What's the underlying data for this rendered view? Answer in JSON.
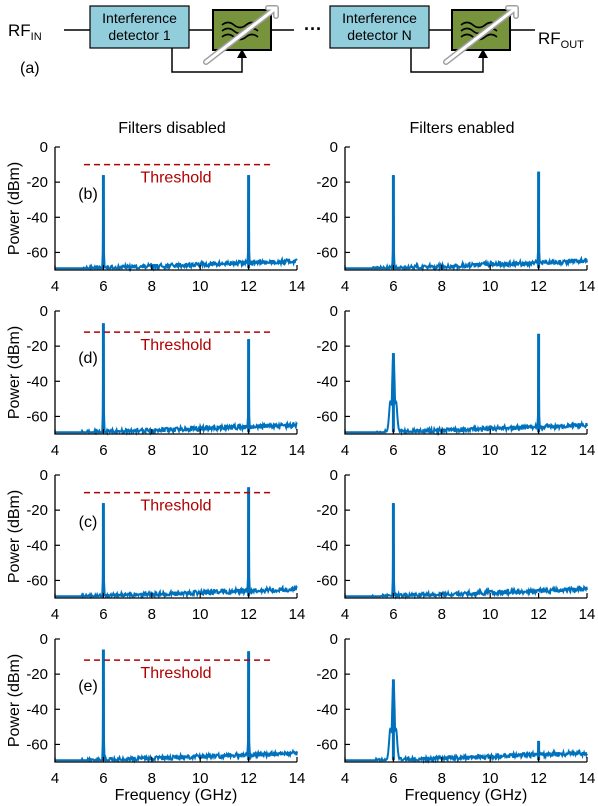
{
  "diagram": {
    "panel_label": "(a)",
    "input": {
      "main": "RF",
      "sub": "IN"
    },
    "output": {
      "main": "RF",
      "sub": "OUT"
    },
    "detector_1": [
      "Interference",
      "detector 1"
    ],
    "detector_n": [
      "Interference",
      "detector N"
    ],
    "ellipsis": "···",
    "filter_icon": "tunable-filter-icon",
    "colors": {
      "detector_fill": "#92cddc",
      "filter_fill": "#77933c"
    }
  },
  "columns": {
    "left": "Filters disabled",
    "right": "Filters enabled"
  },
  "colors": {
    "trace": "#0072bd",
    "threshold": "#b00000"
  },
  "chart_data": [
    {
      "type": "line",
      "label": "(b)",
      "column": "Filters disabled",
      "xlabel": "",
      "ylabel": "Power (dBm)",
      "xlim": [
        4,
        14
      ],
      "ylim": [
        -70,
        0
      ],
      "xticks": [
        4,
        6,
        8,
        10,
        12,
        14
      ],
      "yticks": [
        0,
        -20,
        -40,
        -60
      ],
      "noise_floor": -69,
      "threshold": -10,
      "threshold_label": "Threshold",
      "peaks": [
        {
          "x": 6,
          "y": -16
        },
        {
          "x": 12,
          "y": -16
        }
      ]
    },
    {
      "type": "line",
      "label": "",
      "column": "Filters enabled",
      "xlabel": "",
      "ylabel": "",
      "xlim": [
        4,
        14
      ],
      "ylim": [
        -70,
        0
      ],
      "xticks": [
        4,
        6,
        8,
        10,
        12,
        14
      ],
      "yticks": [
        0,
        -20,
        -40,
        -60
      ],
      "noise_floor": -69,
      "threshold": null,
      "threshold_label": "",
      "peaks": [
        {
          "x": 6,
          "y": -16
        },
        {
          "x": 12,
          "y": -14
        }
      ]
    },
    {
      "type": "line",
      "label": "(d)",
      "column": "Filters disabled",
      "xlabel": "",
      "ylabel": "Power (dBm)",
      "xlim": [
        4,
        14
      ],
      "ylim": [
        -70,
        0
      ],
      "xticks": [
        4,
        6,
        8,
        10,
        12,
        14
      ],
      "yticks": [
        0,
        -20,
        -40,
        -60
      ],
      "noise_floor": -69,
      "threshold": -12,
      "threshold_label": "Threshold",
      "peaks": [
        {
          "x": 6,
          "y": -7
        },
        {
          "x": 12,
          "y": -16
        }
      ]
    },
    {
      "type": "line",
      "label": "",
      "column": "Filters enabled",
      "xlabel": "",
      "ylabel": "",
      "xlim": [
        4,
        14
      ],
      "ylim": [
        -70,
        0
      ],
      "xticks": [
        4,
        6,
        8,
        10,
        12,
        14
      ],
      "yticks": [
        0,
        -20,
        -40,
        -60
      ],
      "noise_floor": -69,
      "threshold": null,
      "threshold_label": "",
      "peaks": [
        {
          "x": 6,
          "y": -24,
          "wide": true
        },
        {
          "x": 12,
          "y": -13
        }
      ]
    },
    {
      "type": "line",
      "label": "(c)",
      "column": "Filters disabled",
      "xlabel": "",
      "ylabel": "Power (dBm)",
      "xlim": [
        4,
        14
      ],
      "ylim": [
        -70,
        0
      ],
      "xticks": [
        4,
        6,
        8,
        10,
        12,
        14
      ],
      "yticks": [
        0,
        -20,
        -40,
        -60
      ],
      "noise_floor": -69,
      "threshold": -10,
      "threshold_label": "Threshold",
      "peaks": [
        {
          "x": 6,
          "y": -16
        },
        {
          "x": 12,
          "y": -7
        }
      ]
    },
    {
      "type": "line",
      "label": "",
      "column": "Filters enabled",
      "xlabel": "",
      "ylabel": "",
      "xlim": [
        4,
        14
      ],
      "ylim": [
        -70,
        0
      ],
      "xticks": [
        4,
        6,
        8,
        10,
        12,
        14
      ],
      "yticks": [
        0,
        -20,
        -40,
        -60
      ],
      "noise_floor": -69,
      "threshold": null,
      "threshold_label": "",
      "peaks": [
        {
          "x": 6,
          "y": -16
        }
      ]
    },
    {
      "type": "line",
      "label": "(e)",
      "column": "Filters disabled",
      "xlabel": "Frequency (GHz)",
      "ylabel": "Power (dBm)",
      "xlim": [
        4,
        14
      ],
      "ylim": [
        -70,
        0
      ],
      "xticks": [
        4,
        6,
        8,
        10,
        12,
        14
      ],
      "yticks": [
        0,
        -20,
        -40,
        -60
      ],
      "noise_floor": -69,
      "threshold": -12,
      "threshold_label": "Threshold",
      "peaks": [
        {
          "x": 6,
          "y": -6
        },
        {
          "x": 12,
          "y": -7
        }
      ]
    },
    {
      "type": "line",
      "label": "",
      "column": "Filters enabled",
      "xlabel": "Frequency (GHz)",
      "ylabel": "",
      "xlim": [
        4,
        14
      ],
      "ylim": [
        -70,
        0
      ],
      "xticks": [
        4,
        6,
        8,
        10,
        12,
        14
      ],
      "yticks": [
        0,
        -20,
        -40,
        -60
      ],
      "noise_floor": -69,
      "threshold": null,
      "threshold_label": "",
      "peaks": [
        {
          "x": 6,
          "y": -23,
          "wide": true
        },
        {
          "x": 12,
          "y": -58
        }
      ]
    }
  ]
}
